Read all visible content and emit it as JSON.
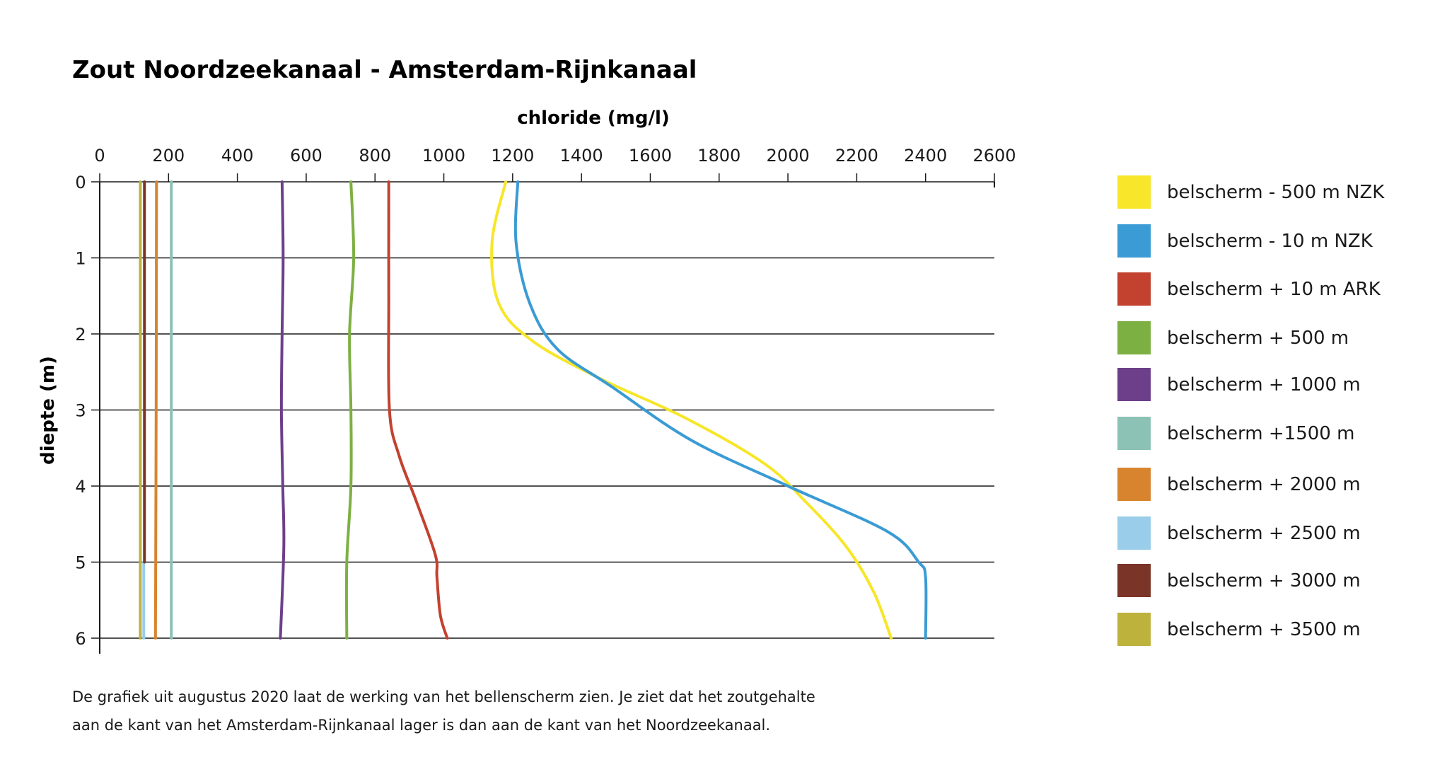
{
  "chart_data": {
    "type": "line",
    "title": "Zout Noordzeekanaal - Amsterdam-Rijnkanaal",
    "xlabel": "chloride (mg/l)",
    "ylabel": "diepte (m)",
    "xlim": [
      0,
      2600
    ],
    "ylim": [
      0,
      6
    ],
    "x_ticks": [
      "0",
      "200",
      "400",
      "600",
      "800",
      "1000",
      "1200",
      "1400",
      "1600",
      "1800",
      "2000",
      "2200",
      "2400",
      "2600"
    ],
    "y_ticks": [
      "0",
      "1",
      "2",
      "3",
      "4",
      "5",
      "6"
    ],
    "legend_position": "right",
    "series": [
      {
        "name": "belscherm - 500 m NZK",
        "color": "#f7e629",
        "points": [
          [
            1180,
            0
          ],
          [
            1140,
            0.8
          ],
          [
            1160,
            1.6
          ],
          [
            1260,
            2.1
          ],
          [
            1460,
            2.6
          ],
          [
            1700,
            3.1
          ],
          [
            1930,
            3.7
          ],
          [
            2050,
            4.2
          ],
          [
            2170,
            4.8
          ],
          [
            2250,
            5.4
          ],
          [
            2300,
            6
          ]
        ]
      },
      {
        "name": "belscherm - 10 m NZK",
        "color": "#3a9bd5",
        "points": [
          [
            1215,
            0
          ],
          [
            1210,
            0.8
          ],
          [
            1250,
            1.6
          ],
          [
            1330,
            2.2
          ],
          [
            1490,
            2.7
          ],
          [
            1720,
            3.4
          ],
          [
            2000,
            4.0
          ],
          [
            2290,
            4.6
          ],
          [
            2380,
            5.0
          ],
          [
            2400,
            5.2
          ],
          [
            2400,
            6
          ]
        ]
      },
      {
        "name": "belscherm + 10 m ARK",
        "color": "#c2422f",
        "points": [
          [
            840,
            0
          ],
          [
            840,
            1.5
          ],
          [
            842,
            3.0
          ],
          [
            870,
            3.6
          ],
          [
            920,
            4.2
          ],
          [
            975,
            4.9
          ],
          [
            980,
            5.2
          ],
          [
            990,
            5.7
          ],
          [
            1010,
            6
          ]
        ]
      },
      {
        "name": "belscherm + 500 m",
        "color": "#7db043",
        "points": [
          [
            730,
            0
          ],
          [
            738,
            1
          ],
          [
            726,
            2
          ],
          [
            730,
            3
          ],
          [
            730,
            4
          ],
          [
            718,
            5
          ],
          [
            718,
            6
          ]
        ]
      },
      {
        "name": "belscherm + 1000 m",
        "color": "#6d3f8a",
        "points": [
          [
            530,
            0
          ],
          [
            533,
            1
          ],
          [
            530,
            2
          ],
          [
            528,
            3
          ],
          [
            532,
            4
          ],
          [
            535,
            4.8
          ],
          [
            525,
            6
          ]
        ]
      },
      {
        "name": "belscherm +1500 m",
        "color": "#8cc2b5",
        "points": [
          [
            208,
            0
          ],
          [
            208,
            6
          ]
        ]
      },
      {
        "name": "belscherm + 2000 m",
        "color": "#d8842e",
        "points": [
          [
            165,
            0
          ],
          [
            164,
            3
          ],
          [
            162,
            6
          ]
        ]
      },
      {
        "name": "belscherm + 2500 m",
        "color": "#99cde9",
        "points": [
          [
            128,
            5.0
          ],
          [
            128,
            6
          ]
        ]
      },
      {
        "name": "belscherm + 3000 m",
        "color": "#7a3428",
        "points": [
          [
            130,
            0
          ],
          [
            130,
            5.0
          ]
        ]
      },
      {
        "name": "belscherm + 3500 m",
        "color": "#bdb23c",
        "points": [
          [
            118,
            0
          ],
          [
            118,
            6
          ]
        ]
      }
    ]
  },
  "caption": {
    "line1": "De grafiek uit augustus 2020 laat de werking van het bellenscherm zien. Je ziet dat het zoutgehalte",
    "line2": "aan de kant van het Amsterdam-Rijnkanaal lager is dan aan de kant van het Noordzeekanaal."
  }
}
